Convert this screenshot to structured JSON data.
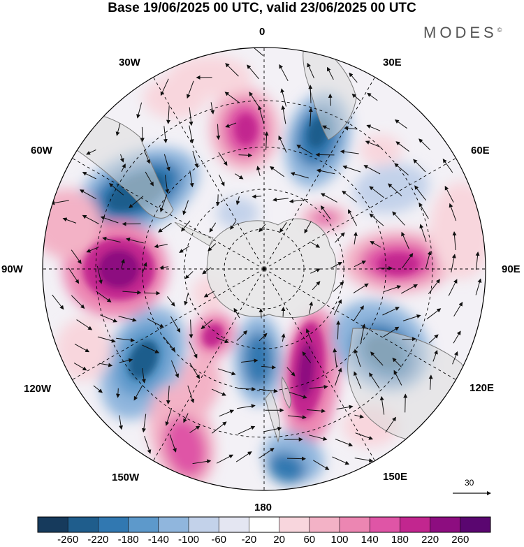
{
  "header": {
    "title": "Base 19/06/2025 00 UTC, valid 23/06/2025 00 UTC",
    "brand": "MODES",
    "brand_mark": "©"
  },
  "map": {
    "projection": "south-polar-stereographic",
    "longitude_labels": {
      "top": "0",
      "top_right": "30E",
      "right_upper": "60E",
      "right": "90E",
      "right_lower": "120E",
      "bottom_right": "150E",
      "bottom": "180",
      "bottom_left": "150W",
      "left_lower": "120W",
      "left": "90W",
      "left_upper": "60W",
      "top_left": "30W"
    },
    "reference_vector_label": "30",
    "colors": {
      "continent": "#e6e6e6",
      "coast": "#7a7a7a",
      "graticule": "#000000"
    }
  },
  "colorbar": {
    "ticks": [
      "-260",
      "-220",
      "-180",
      "-140",
      "-100",
      "-60",
      "-20",
      "20",
      "60",
      "100",
      "140",
      "180",
      "220",
      "260"
    ],
    "colors": [
      "#163a5c",
      "#1f5d8c",
      "#3178b1",
      "#5d99cb",
      "#90b6dd",
      "#c3d2ea",
      "#e4e6f2",
      "#ffffff",
      "#f8d6dd",
      "#f3b2c6",
      "#ec86b2",
      "#df55a6",
      "#c2268f",
      "#8d0d80",
      "#5a0670"
    ]
  }
}
